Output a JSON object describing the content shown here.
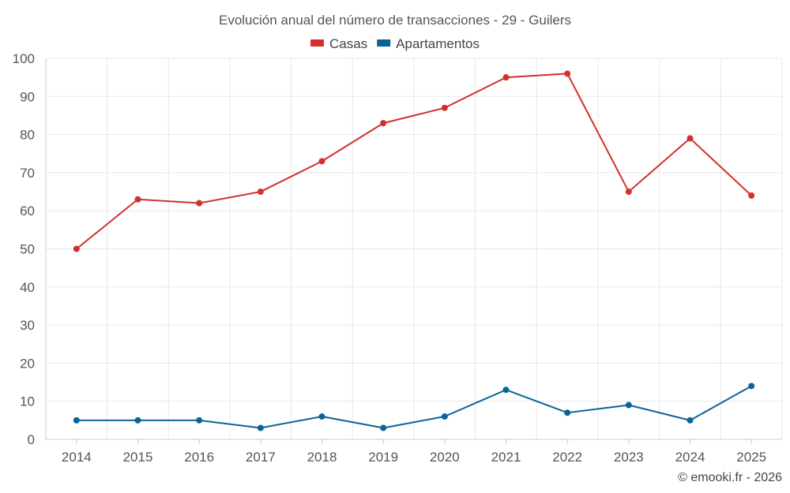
{
  "chart_data": {
    "type": "line",
    "title": "Evolución anual del número de transacciones - 29 - Guilers",
    "categories": [
      "2014",
      "2015",
      "2016",
      "2017",
      "2018",
      "2019",
      "2020",
      "2021",
      "2022",
      "2023",
      "2024",
      "2025"
    ],
    "series": [
      {
        "name": "Casas",
        "color": "#d32f2f",
        "values": [
          50,
          63,
          62,
          65,
          73,
          83,
          87,
          95,
          96,
          65,
          79,
          64
        ]
      },
      {
        "name": "Apartamentos",
        "color": "#0d6398",
        "values": [
          5,
          5,
          5,
          3,
          6,
          3,
          6,
          13,
          7,
          9,
          5,
          14
        ]
      }
    ],
    "ylim": [
      0,
      100
    ],
    "yticks": [
      0,
      10,
      20,
      30,
      40,
      50,
      60,
      70,
      80,
      90,
      100
    ],
    "xlabel": "",
    "ylabel": "",
    "grid": true,
    "legend_position": "top-center"
  },
  "credit": "© emooki.fr - 2026"
}
